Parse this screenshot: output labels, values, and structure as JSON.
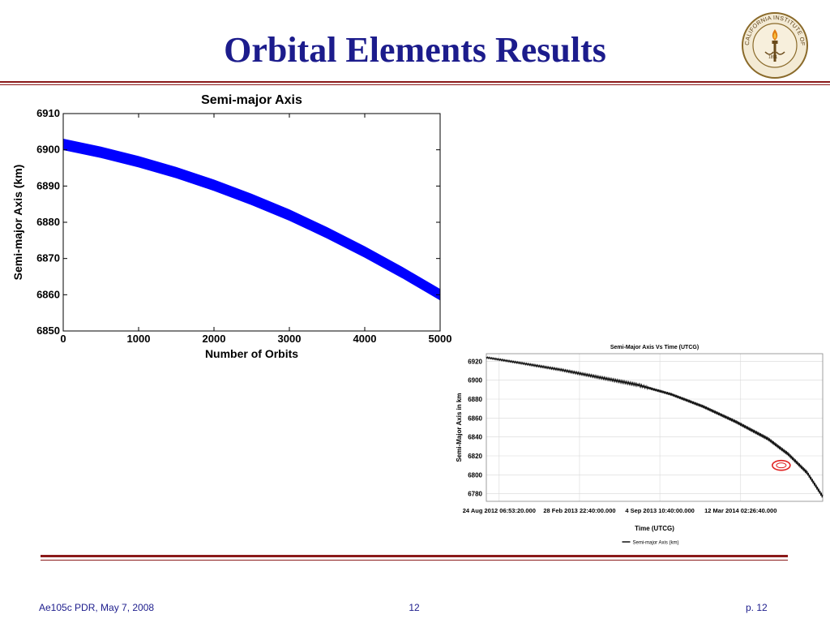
{
  "slide": {
    "title": "Orbital Elements Results",
    "colors": {
      "title": "#1c1c8c",
      "rule": "#8b1a1a",
      "footer": "#1c1c8c",
      "series1": "#0000ff",
      "series2": "#111111",
      "highlight": "#e02020"
    }
  },
  "logo": {
    "name": "caltech-seal-icon",
    "ring_text": "CALIFORNIA INSTITUTE OF TECHNOLOGY",
    "year": "1891"
  },
  "chart_data": [
    {
      "type": "line",
      "title": "Semi-major Axis",
      "xlabel": "Number of Orbits",
      "ylabel": "Semi-major Axis (km)",
      "xlim": [
        0,
        5000
      ],
      "ylim": [
        6850,
        6910
      ],
      "xticks": [
        0,
        1000,
        2000,
        3000,
        4000,
        5000
      ],
      "yticks": [
        6850,
        6860,
        6870,
        6880,
        6890,
        6900,
        6910
      ],
      "grid": false,
      "legend": "none",
      "series": [
        {
          "x": [
            0,
            500,
            1000,
            1500,
            2000,
            2500,
            3000,
            3500,
            4000,
            4500,
            5000
          ],
          "y_upper": [
            6903,
            6900.8,
            6898.2,
            6895.2,
            6891.7,
            6887.8,
            6883.5,
            6878.6,
            6873.3,
            6867.6,
            6861.5
          ],
          "y_lower": [
            6900,
            6897.8,
            6895.2,
            6892.2,
            6888.7,
            6884.8,
            6880.5,
            6875.6,
            6870.3,
            6864.6,
            6858.5
          ]
        }
      ]
    },
    {
      "type": "line",
      "title": "Semi-Major Axis Vs Time (UTCG)",
      "xlabel": "Time (UTCG)",
      "ylabel": "Semi-Major Axis in km",
      "yticks": [
        6780,
        6800,
        6820,
        6840,
        6860,
        6880,
        6900,
        6920
      ],
      "ylim": [
        6772,
        6928
      ],
      "xlim": [
        "2012-07-25",
        "2014-09-20"
      ],
      "xticks": [
        {
          "date": "2012-08-24",
          "label": "24 Aug 2012 06:53:20.000"
        },
        {
          "date": "2013-02-28",
          "label": "28 Feb 2013 22:40:00.000"
        },
        {
          "date": "2013-09-04",
          "label": "4 Sep 2013 10:40:00.000"
        },
        {
          "date": "2014-03-12",
          "label": "12 Mar 2014 02:26:40.000"
        }
      ],
      "grid": true,
      "legend": "bottom",
      "series": [
        {
          "name": "Semi-major Axis (km)",
          "x": [
            "2012-07-25",
            "2012-10-15",
            "2013-01-15",
            "2013-04-15",
            "2013-07-15",
            "2013-10-01",
            "2013-12-15",
            "2014-03-01",
            "2014-05-15",
            "2014-07-01",
            "2014-08-15",
            "2014-09-20"
          ],
          "y": [
            6924,
            6918,
            6911,
            6903,
            6895,
            6885,
            6872,
            6856,
            6838,
            6822,
            6802,
            6777
          ]
        }
      ],
      "annotations": [
        {
          "type": "ellipse",
          "x": "2014-06-15",
          "y": 6810,
          "color": "#e02020"
        }
      ]
    }
  ],
  "footer": {
    "left": "Ae105c PDR, May 7, 2008",
    "center": "12",
    "right": "p. 12"
  }
}
